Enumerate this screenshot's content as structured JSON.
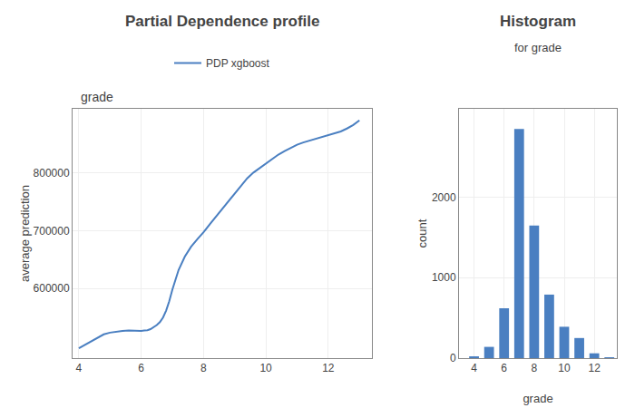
{
  "chart_data": [
    {
      "type": "line",
      "title": "Partial Dependence profile",
      "annotations": [
        "grade"
      ],
      "ylabel": "average prediction",
      "x": [
        4.0,
        4.2,
        4.4,
        4.6,
        4.8,
        5.0,
        5.2,
        5.4,
        5.6,
        5.8,
        6.0,
        6.1,
        6.2,
        6.3,
        6.4,
        6.5,
        6.6,
        6.7,
        6.8,
        6.9,
        7.0,
        7.2,
        7.4,
        7.6,
        7.8,
        8.0,
        8.2,
        8.4,
        8.6,
        8.8,
        9.0,
        9.2,
        9.4,
        9.6,
        9.8,
        10.0,
        10.2,
        10.4,
        10.6,
        10.8,
        11.0,
        11.2,
        11.4,
        11.6,
        11.8,
        12.0,
        12.2,
        12.4,
        12.6,
        12.8,
        13.0
      ],
      "series": [
        {
          "name": "PDP xgboost",
          "color": "#4a7fc1",
          "values": [
            497000,
            503000,
            510000,
            516000,
            521000,
            524000,
            526000,
            527000,
            527500,
            527000,
            527000,
            527500,
            528000,
            530000,
            533000,
            537000,
            542000,
            550000,
            562000,
            578000,
            598000,
            632000,
            655000,
            672000,
            685000,
            697000,
            711000,
            724000,
            737000,
            750000,
            764000,
            776000,
            790000,
            800000,
            808000,
            816000,
            824000,
            831000,
            837000,
            843000,
            848000,
            852000,
            855000,
            858000,
            861000,
            864000,
            867000,
            871000,
            876000,
            882000,
            890000
          ]
        }
      ],
      "xlim": [
        3.8,
        13.4
      ],
      "ylim": [
        480000,
        910000
      ],
      "xticks": [
        4,
        6,
        8,
        10,
        12
      ],
      "yticks": [
        600000,
        700000,
        800000
      ],
      "grid": true,
      "legend": "top"
    },
    {
      "type": "bar",
      "title": "Histogram",
      "subtitle": "for grade",
      "xlabel": "grade",
      "ylabel": "count",
      "x": [
        4,
        5,
        6,
        7,
        8,
        9,
        10,
        11,
        12,
        13
      ],
      "values": [
        15,
        140,
        620,
        2850,
        1650,
        790,
        390,
        250,
        60,
        10
      ],
      "color": "#4a7fc1",
      "xlim": [
        3.0,
        13.5
      ],
      "ylim": [
        0,
        3100
      ],
      "xticks": [
        4,
        6,
        8,
        10,
        12
      ],
      "yticks": [
        0,
        1000,
        2000
      ],
      "grid": true
    }
  ]
}
